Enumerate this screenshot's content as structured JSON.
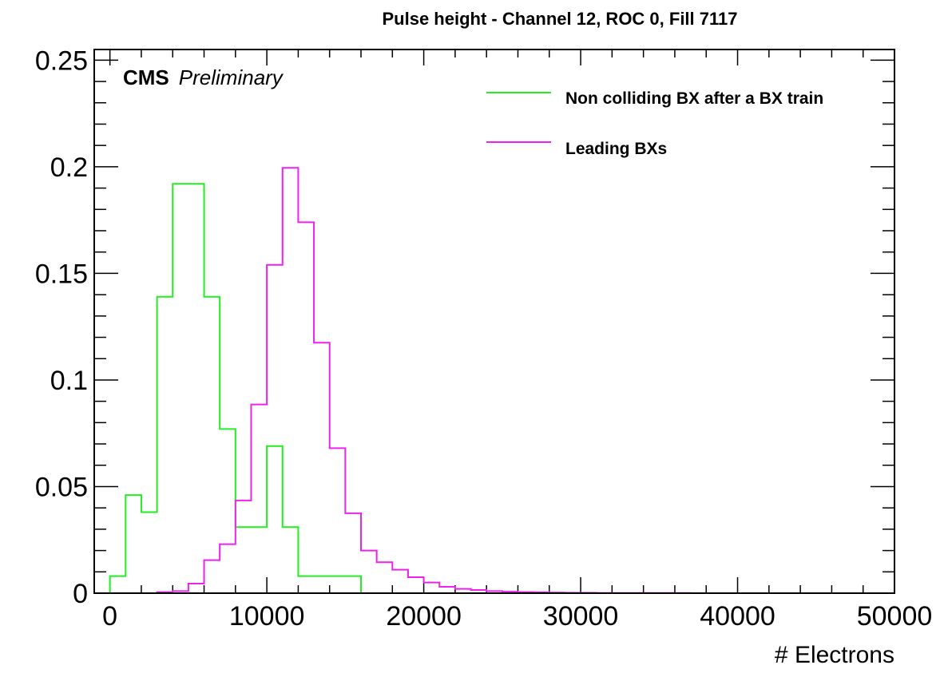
{
  "chart_data": {
    "type": "histogram",
    "title": "Pulse height - Channel 12, ROC 0, Fill 7117",
    "xlabel": "# Electrons",
    "ylabel": "",
    "xlim": [
      -1000,
      50000
    ],
    "ylim": [
      0,
      0.255
    ],
    "x_ticks": [
      0,
      10000,
      20000,
      30000,
      40000,
      50000
    ],
    "x_tick_labels": [
      "0",
      "10000",
      "20000",
      "30000",
      "40000",
      "50000"
    ],
    "y_ticks": [
      0,
      0.05,
      0.1,
      0.15,
      0.2,
      0.25
    ],
    "y_tick_labels": [
      "0",
      "0.05",
      "0.1",
      "0.15",
      "0.2",
      "0.25"
    ],
    "bin_width": 1000,
    "legend_position": "top-right",
    "annotations": {
      "experiment": "CMS",
      "status": "Preliminary"
    },
    "series": [
      {
        "name": "Non colliding BX after a BX train",
        "color": "#22ee22",
        "bin_edges": [
          0,
          1000,
          2000,
          3000,
          4000,
          5000,
          6000,
          7000,
          8000,
          9000,
          10000,
          11000,
          12000,
          13000,
          14000,
          15000,
          16000
        ],
        "values": [
          0.008,
          0.046,
          0.038,
          0.139,
          0.192,
          0.192,
          0.139,
          0.077,
          0.031,
          0.031,
          0.069,
          0.031,
          0.008,
          0.008,
          0.008,
          0.008
        ]
      },
      {
        "name": "Leading BXs",
        "color": "#ee22ee",
        "bin_edges": [
          0,
          1000,
          2000,
          3000,
          4000,
          5000,
          6000,
          7000,
          8000,
          9000,
          10000,
          11000,
          12000,
          13000,
          14000,
          15000,
          16000,
          17000,
          18000,
          19000,
          20000,
          21000,
          22000,
          23000,
          24000,
          25000,
          26000,
          27000,
          28000,
          29000,
          30000,
          31000,
          32000,
          33000,
          34000,
          35000,
          36000,
          37000
        ],
        "values": [
          0,
          0,
          0,
          0.0005,
          0.001,
          0.0045,
          0.0155,
          0.023,
          0.0435,
          0.0885,
          0.154,
          0.1995,
          0.174,
          0.1175,
          0.068,
          0.0375,
          0.02,
          0.0145,
          0.011,
          0.0075,
          0.005,
          0.003,
          0.002,
          0.0015,
          0.001,
          0.0007,
          0.0005,
          0.0004,
          0.0003,
          0.0002,
          0.0002,
          0.0001,
          0.0001,
          0.0001,
          0.0001,
          0.0001,
          0.0001
        ]
      }
    ]
  }
}
